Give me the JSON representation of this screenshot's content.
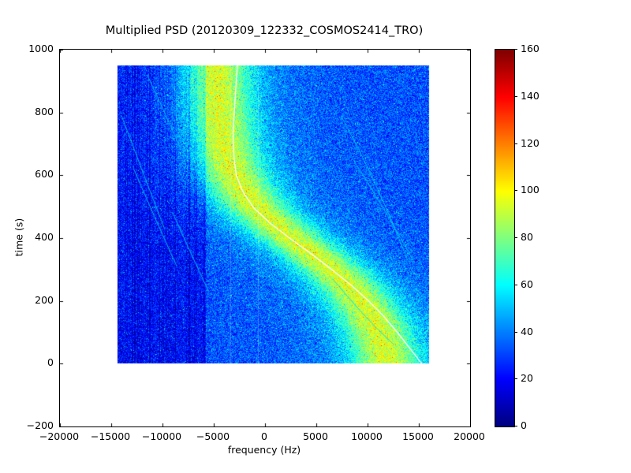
{
  "chart_data": {
    "type": "heatmap",
    "title": "Multiplied PSD (20120309_122332_COSMOS2414_TRO)",
    "xlabel": "frequency (Hz)",
    "ylabel": "time (s)",
    "xlim": [
      -20000,
      20000
    ],
    "ylim": [
      -200,
      1000
    ],
    "xticks": [
      -20000,
      -15000,
      -10000,
      -5000,
      0,
      5000,
      10000,
      15000,
      20000
    ],
    "yticks": [
      -200,
      0,
      200,
      400,
      600,
      800,
      1000
    ],
    "grid": false,
    "colormap": "jet",
    "colorbar": {
      "min": 0,
      "max": 160,
      "ticks": [
        0,
        20,
        40,
        60,
        80,
        100,
        120,
        140,
        160
      ],
      "position": "right"
    },
    "data_extent": {
      "freq": [
        -14400,
        16000
      ],
      "time": [
        0,
        950
      ]
    },
    "background": {
      "base_level": 33,
      "noise_amplitude": 14,
      "dark_region_freq_range": [
        -14400,
        -5800
      ],
      "dark_region_offset": -10
    },
    "doppler_band": {
      "peak_level": 50,
      "skirt_level": 12,
      "sigma_hz": 2400,
      "skirt_sigma_factor": 2.3,
      "center_curve_time_freq": [
        [
          0,
          11900
        ],
        [
          50,
          11600
        ],
        [
          100,
          11100
        ],
        [
          150,
          10400
        ],
        [
          200,
          9400
        ],
        [
          250,
          8100
        ],
        [
          300,
          6500
        ],
        [
          350,
          4600
        ],
        [
          400,
          2600
        ],
        [
          450,
          700
        ],
        [
          500,
          -900
        ],
        [
          550,
          -2100
        ],
        [
          600,
          -3000
        ],
        [
          650,
          -3600
        ],
        [
          700,
          -4000
        ],
        [
          750,
          -4300
        ],
        [
          800,
          -4500
        ],
        [
          850,
          -4600
        ],
        [
          900,
          -4700
        ],
        [
          950,
          -4800
        ]
      ]
    },
    "white_overlay_curve_time_freq": [
      [
        0,
        15300
      ],
      [
        50,
        14100
      ],
      [
        100,
        12900
      ],
      [
        150,
        11600
      ],
      [
        200,
        10100
      ],
      [
        250,
        8400
      ],
      [
        300,
        6500
      ],
      [
        350,
        4500
      ],
      [
        400,
        2400
      ],
      [
        450,
        400
      ],
      [
        500,
        -1200
      ],
      [
        550,
        -2200
      ],
      [
        600,
        -2800
      ],
      [
        650,
        -3000
      ],
      [
        700,
        -3100
      ],
      [
        750,
        -3100
      ],
      [
        800,
        -3000
      ],
      [
        850,
        -2900
      ],
      [
        900,
        -2800
      ],
      [
        950,
        -2700
      ]
    ],
    "faint_traces_freq_time": [
      [
        [
          -14000,
          790
        ],
        [
          -11800,
          600
        ],
        [
          -9800,
          430
        ]
      ],
      [
        [
          -12800,
          620
        ],
        [
          -10800,
          470
        ],
        [
          -8600,
          310
        ]
      ],
      [
        [
          -11500,
          920
        ],
        [
          -9800,
          800
        ],
        [
          -8300,
          690
        ]
      ],
      [
        [
          -9000,
          480
        ],
        [
          -7200,
          350
        ],
        [
          -5500,
          230
        ]
      ],
      [
        [
          7400,
          790
        ],
        [
          10800,
          570
        ],
        [
          13900,
          330
        ]
      ],
      [
        [
          8600,
          650
        ],
        [
          11800,
          480
        ],
        [
          14600,
          320
        ]
      ],
      [
        [
          6600,
          270
        ],
        [
          9800,
          150
        ],
        [
          12600,
          60
        ]
      ]
    ],
    "artifact_vertical_lines_freq": [
      -3400,
      -700
    ],
    "colors": {
      "figure_background": "#ffffff",
      "axes_edge": "#000000",
      "band_peak_color": "#dfff00",
      "band_skirt_color": "#00ffff",
      "background_color": "#0055ff",
      "dark_region_color": "#0000d0",
      "overlay_curve_color": "#ffffff"
    }
  }
}
